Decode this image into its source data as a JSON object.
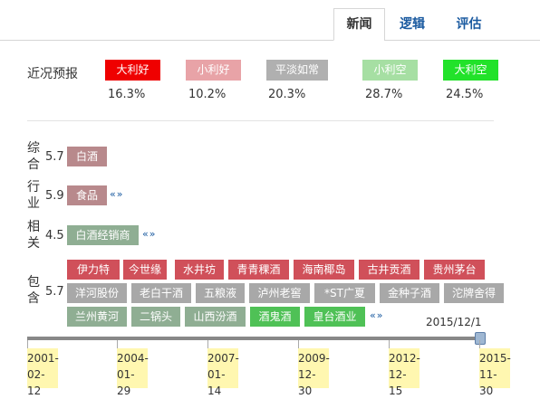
{
  "tabs": [
    {
      "label": "新闻",
      "active": true
    },
    {
      "label": "逻辑",
      "active": false
    },
    {
      "label": "评估",
      "active": false
    }
  ],
  "forecast": {
    "title": "近况预报",
    "items": [
      {
        "label": "大利好",
        "pct": "16.3%",
        "color": "#ef0000"
      },
      {
        "label": "小利好",
        "pct": "10.2%",
        "color": "#e8a3a7"
      },
      {
        "label": "平淡如常",
        "pct": "20.3%",
        "color": "#b0b0b0"
      },
      {
        "label": "小利空",
        "pct": "28.7%",
        "color": "#a6dfa3"
      },
      {
        "label": "大利空",
        "pct": "24.5%",
        "color": "#22e22a"
      }
    ]
  },
  "rows": {
    "composite": {
      "label": "综合",
      "score": "5.7",
      "tags": [
        "白酒"
      ],
      "color": "#b8898c"
    },
    "industry": {
      "label": "行业",
      "score": "5.9",
      "tags": [
        "食品"
      ],
      "color": "#b8898c",
      "arrows": "«»"
    },
    "related": {
      "label": "相关",
      "score": "4.5",
      "tags": [
        "白酒经销商"
      ],
      "color": "#8fae93",
      "arrows": "«»"
    },
    "contains": {
      "label": "包含",
      "score": "5.7",
      "arrows": "«»",
      "line1": [
        "伊力特",
        "今世缘",
        "水井坊",
        "青青稞酒",
        "海南椰岛",
        "古井贡酒",
        "贵州茅台"
      ],
      "line2": [
        "洋河股份",
        "老白干酒",
        "五粮液",
        "泸州老窖",
        "*ST广夏",
        "金种子酒",
        "沱牌舍得"
      ],
      "line3": [
        "兰州黄河",
        "二锅头",
        "山西汾酒",
        "酒鬼酒",
        "皇台酒业"
      ],
      "red_color": "#d0505a",
      "gray_color": "#a8a8a8",
      "green_color": "#8fae93",
      "bright_green": "#4fc156"
    }
  },
  "timeline": {
    "current": "2015/12/1",
    "dates": [
      [
        "2001-",
        "02-12"
      ],
      [
        "2004-",
        "01-29"
      ],
      [
        "2007-",
        "01-14"
      ],
      [
        "2009-",
        "12-30"
      ],
      [
        "2012-",
        "12-15"
      ],
      [
        "2015-",
        "11-30"
      ]
    ]
  }
}
